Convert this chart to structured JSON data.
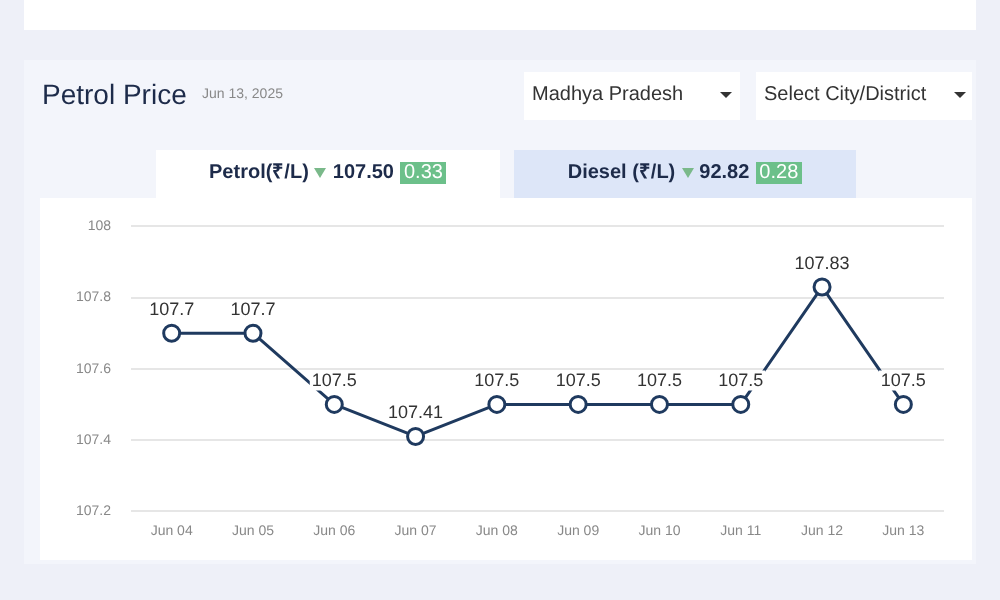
{
  "chart_data": {
    "type": "line",
    "title": "Petrol Price",
    "subtitle": "Jun 13, 2025",
    "annotations": [
      "Madhya Pradesh",
      "Select City/District",
      "Petrol(₹/L)",
      "107.50",
      "0.33",
      "Diesel (₹/L)",
      "92.82",
      "0.28"
    ],
    "categories": [
      "Jun 04",
      "Jun 05",
      "Jun 06",
      "Jun 07",
      "Jun 08",
      "Jun 09",
      "Jun 10",
      "Jun 11",
      "Jun 12",
      "Jun 13"
    ],
    "series": [
      {
        "color": "#1f3a5f",
        "values": [
          107.7,
          107.7,
          107.5,
          107.41,
          107.5,
          107.5,
          107.5,
          107.5,
          107.83,
          107.5
        ]
      }
    ],
    "ylim": [
      107.2,
      108
    ],
    "yticks": [
      107.2,
      107.4,
      107.6,
      107.8,
      108
    ],
    "grid": "y",
    "legend": false,
    "marker": "circle",
    "line_style": "solid",
    "data_labels": true
  }
}
